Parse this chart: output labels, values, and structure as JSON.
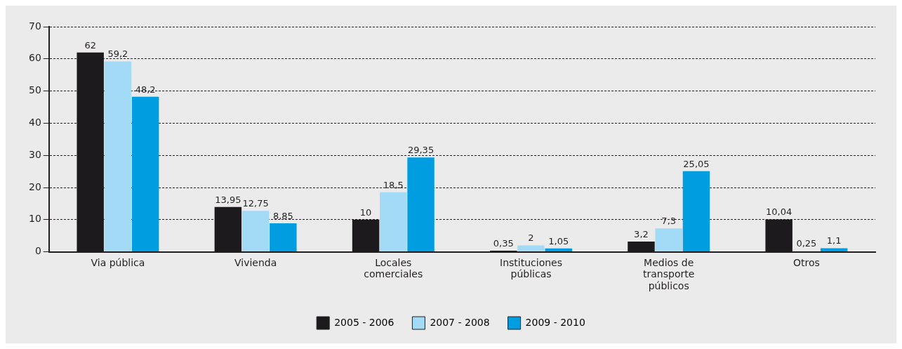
{
  "chart_data": {
    "type": "bar",
    "categories": [
      "Via pública",
      "Vivienda",
      "Locales comerciales",
      "Instituciones públicas",
      "Medios de transporte públicos",
      "Otros"
    ],
    "series": [
      {
        "name": "2005 - 2006",
        "color": "#1c1a1d",
        "values": [
          62,
          13.95,
          10,
          0.35,
          3.2,
          10.04
        ],
        "value_labels": [
          "62",
          "13,95",
          "10",
          "0,35",
          "3,2",
          "10,04"
        ]
      },
      {
        "name": "2007 - 2008",
        "color": "#a3daf5",
        "values": [
          59.2,
          12.75,
          18.5,
          2,
          7.3,
          0.25
        ],
        "value_labels": [
          "59,2",
          "12,75",
          "18,5",
          "2",
          "7,3",
          "0,25"
        ]
      },
      {
        "name": "2009 - 2010",
        "color": "#009ee0",
        "values": [
          48.2,
          8.85,
          29.35,
          1.05,
          25.05,
          1.1
        ],
        "value_labels": [
          "48,2",
          "8,85",
          "29,35",
          "1,05",
          "25,05",
          "1,1"
        ]
      }
    ],
    "ylim": [
      0,
      70
    ],
    "yticks": [
      0,
      10,
      20,
      30,
      40,
      50,
      60,
      70
    ],
    "grid": "y",
    "legend": "bottom"
  }
}
